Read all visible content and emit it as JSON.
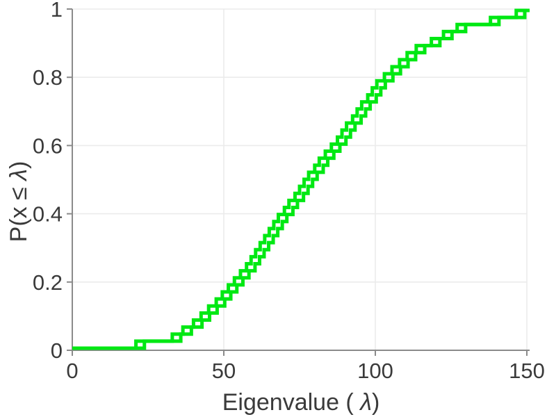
{
  "chart_data": {
    "type": "line",
    "style": "ecdf-stairs",
    "title": "",
    "xlabel": "Eigenvalue ( λ)",
    "ylabel": "P(x ≤ λ)",
    "xlabel_parts": {
      "prefix": "Eigenvalue ( ",
      "symbol": "λ",
      "suffix": ")"
    },
    "ylabel_parts": {
      "prefix": "P(x ≤ ",
      "symbol": "λ",
      "suffix": ")"
    },
    "xlim": [
      0,
      150
    ],
    "ylim": [
      0,
      1
    ],
    "xticks": [
      0,
      50,
      100,
      150
    ],
    "xtick_labels": [
      "0",
      "50",
      "100",
      "150"
    ],
    "yticks": [
      0,
      0.2,
      0.4,
      0.6,
      0.8,
      1
    ],
    "ytick_labels": [
      "0",
      "0.2",
      "0.4",
      "0.6",
      "0.8",
      "1"
    ],
    "grid": true,
    "legend": "none",
    "line_color": "#00e813",
    "line_width": 5,
    "axis_color": "#8a8a8a",
    "grid_color": "#ebebeb",
    "text_color": "#3a3a3a",
    "series": [
      {
        "name": "ecdf-series-1",
        "n": 48,
        "eigenvalues": [
          21,
          33,
          36.5,
          40,
          42.5,
          45,
          47.5,
          49.5,
          51.5,
          53.5,
          55.5,
          57.5,
          59,
          60.5,
          62,
          63.5,
          65,
          66.5,
          68,
          70,
          71.5,
          73.5,
          75,
          76.5,
          78,
          80,
          81.5,
          83.5,
          85.5,
          87.5,
          89,
          90.5,
          92.5,
          94,
          95.5,
          97.5,
          99,
          100.5,
          103,
          105.5,
          108,
          110.5,
          113.5,
          118.5,
          122.5,
          127,
          138,
          146.5
        ]
      },
      {
        "name": "ecdf-series-2",
        "n": 48,
        "eigenvalues": [
          23.8,
          35.8,
          39.3,
          42.8,
          45.3,
          47.8,
          50.3,
          52.3,
          54.3,
          56.3,
          58.3,
          60.3,
          61.8,
          63.3,
          64.8,
          66.3,
          67.8,
          69.3,
          70.8,
          72.8,
          74.3,
          76.3,
          77.8,
          79.3,
          80.8,
          82.8,
          84.3,
          86.3,
          88.3,
          90.3,
          91.8,
          93.3,
          95.3,
          96.8,
          98.3,
          100.3,
          101.8,
          103.3,
          105.8,
          108.3,
          110.8,
          113.3,
          116.3,
          121.3,
          125.3,
          129.8,
          140.8,
          149.3
        ]
      }
    ]
  }
}
